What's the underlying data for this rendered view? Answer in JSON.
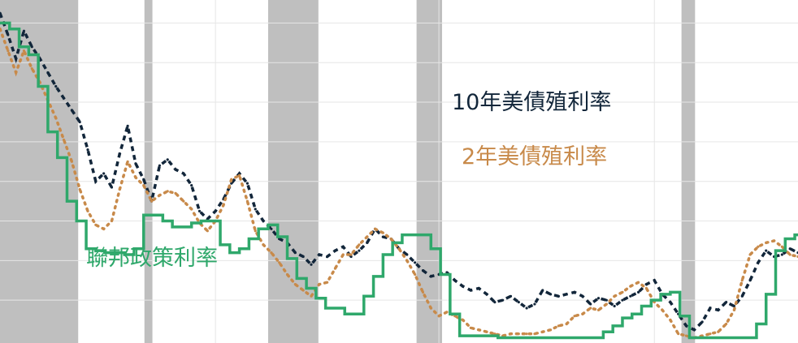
{
  "chart_data": {
    "type": "line",
    "title": "",
    "xlabel": "",
    "ylabel": "",
    "grid": true,
    "recession_shading": true,
    "recessions": [
      [
        0.0,
        0.098
      ],
      [
        0.181,
        0.191
      ],
      [
        0.336,
        0.399
      ],
      [
        0.522,
        0.554
      ],
      [
        0.854,
        0.871
      ]
    ],
    "series": [
      {
        "name": "10年美債殖利率",
        "color": "#12263a",
        "style": "dashed",
        "x": [
          0.0,
          0.01,
          0.02,
          0.03,
          0.04,
          0.05,
          0.06,
          0.07,
          0.08,
          0.09,
          0.1,
          0.11,
          0.12,
          0.13,
          0.14,
          0.15,
          0.16,
          0.17,
          0.18,
          0.19,
          0.2,
          0.21,
          0.22,
          0.23,
          0.24,
          0.25,
          0.26,
          0.27,
          0.28,
          0.29,
          0.3,
          0.31,
          0.32,
          0.33,
          0.34,
          0.35,
          0.36,
          0.37,
          0.38,
          0.39,
          0.4,
          0.41,
          0.42,
          0.43,
          0.44,
          0.45,
          0.46,
          0.47,
          0.48,
          0.49,
          0.5,
          0.51,
          0.52,
          0.53,
          0.54,
          0.55,
          0.56,
          0.57,
          0.58,
          0.59,
          0.6,
          0.61,
          0.62,
          0.63,
          0.64,
          0.65,
          0.66,
          0.67,
          0.68,
          0.69,
          0.7,
          0.71,
          0.72,
          0.73,
          0.74,
          0.75,
          0.76,
          0.77,
          0.78,
          0.79,
          0.8,
          0.81,
          0.82,
          0.83,
          0.84,
          0.85,
          0.86,
          0.87,
          0.88,
          0.89,
          0.9,
          0.91,
          0.92,
          0.93,
          0.94,
          0.95,
          0.96,
          0.97,
          0.98,
          0.99,
          1.0
        ],
        "y": [
          16.5,
          15.4,
          14.2,
          15.6,
          14.8,
          14.2,
          13.5,
          12.8,
          12.2,
          11.6,
          11.0,
          9.6,
          8.0,
          8.4,
          7.7,
          9.4,
          10.8,
          8.9,
          8.1,
          7.0,
          8.8,
          9.1,
          8.6,
          8.4,
          7.8,
          6.5,
          6.1,
          6.5,
          7.1,
          7.9,
          8.4,
          7.9,
          6.6,
          6.0,
          5.6,
          5.1,
          4.9,
          4.4,
          4.2,
          3.8,
          4.3,
          4.2,
          4.5,
          4.7,
          4.2,
          4.5,
          4.9,
          5.6,
          5.2,
          5.1,
          4.6,
          4.3,
          3.9,
          3.5,
          3.2,
          3.3,
          3.4,
          3.0,
          2.7,
          2.5,
          2.6,
          2.3,
          1.9,
          2.0,
          2.2,
          1.9,
          1.6,
          1.8,
          2.5,
          2.3,
          2.2,
          2.3,
          2.4,
          2.2,
          1.8,
          2.1,
          2.0,
          1.7,
          2.0,
          2.2,
          2.4,
          2.8,
          3.0,
          2.3,
          1.9,
          1.3,
          0.7,
          0.5,
          0.9,
          1.6,
          1.5,
          1.9,
          1.7,
          2.2,
          3.0,
          3.9,
          4.5,
          4.2,
          4.3,
          4.6,
          4.4
        ]
      },
      {
        "name": "2年美債殖利率",
        "color": "#c88a4a",
        "style": "dotted",
        "x": [
          0.0,
          0.01,
          0.02,
          0.03,
          0.04,
          0.05,
          0.06,
          0.07,
          0.08,
          0.09,
          0.1,
          0.11,
          0.12,
          0.13,
          0.14,
          0.15,
          0.16,
          0.17,
          0.18,
          0.19,
          0.2,
          0.21,
          0.22,
          0.23,
          0.24,
          0.25,
          0.26,
          0.27,
          0.28,
          0.29,
          0.3,
          0.31,
          0.32,
          0.33,
          0.34,
          0.35,
          0.36,
          0.37,
          0.38,
          0.39,
          0.4,
          0.41,
          0.42,
          0.43,
          0.44,
          0.45,
          0.46,
          0.47,
          0.48,
          0.49,
          0.5,
          0.51,
          0.52,
          0.53,
          0.54,
          0.55,
          0.56,
          0.57,
          0.58,
          0.59,
          0.6,
          0.61,
          0.62,
          0.63,
          0.64,
          0.65,
          0.66,
          0.67,
          0.68,
          0.69,
          0.7,
          0.71,
          0.72,
          0.73,
          0.74,
          0.75,
          0.76,
          0.77,
          0.78,
          0.79,
          0.8,
          0.81,
          0.82,
          0.83,
          0.84,
          0.85,
          0.86,
          0.87,
          0.88,
          0.89,
          0.9,
          0.91,
          0.92,
          0.93,
          0.94,
          0.95,
          0.96,
          0.97,
          0.98,
          0.99,
          1.0
        ],
        "y": [
          15.7,
          14.6,
          13.5,
          14.6,
          13.7,
          13.0,
          12.1,
          11.2,
          10.1,
          9.0,
          7.6,
          6.5,
          5.8,
          5.6,
          6.0,
          7.6,
          9.0,
          8.2,
          7.8,
          7.0,
          7.3,
          7.5,
          7.4,
          7.0,
          6.6,
          5.9,
          5.5,
          6.0,
          6.8,
          8.1,
          8.3,
          7.0,
          5.5,
          4.8,
          4.4,
          3.9,
          3.3,
          2.8,
          2.5,
          2.2,
          2.8,
          2.9,
          3.6,
          4.3,
          4.3,
          4.8,
          5.2,
          5.6,
          5.4,
          5.1,
          4.6,
          4.0,
          3.3,
          2.4,
          1.6,
          1.2,
          1.4,
          1.2,
          1.0,
          0.6,
          0.5,
          0.4,
          0.3,
          0.2,
          0.3,
          0.3,
          0.3,
          0.3,
          0.4,
          0.5,
          0.7,
          0.8,
          1.2,
          1.3,
          1.6,
          1.5,
          1.8,
          2.2,
          2.4,
          2.7,
          2.9,
          2.6,
          1.9,
          1.5,
          1.0,
          0.3,
          0.2,
          0.1,
          0.2,
          0.3,
          0.4,
          0.8,
          1.5,
          3.0,
          4.3,
          4.7,
          4.9,
          5.0,
          4.7,
          4.3,
          4.2
        ]
      },
      {
        "name": "聯邦政策利率",
        "color": "#2fa86b",
        "style": "solid",
        "x": [
          0.0,
          0.012,
          0.024,
          0.036,
          0.048,
          0.06,
          0.072,
          0.084,
          0.096,
          0.108,
          0.12,
          0.132,
          0.144,
          0.156,
          0.168,
          0.18,
          0.192,
          0.204,
          0.216,
          0.228,
          0.24,
          0.252,
          0.264,
          0.276,
          0.288,
          0.3,
          0.312,
          0.324,
          0.336,
          0.348,
          0.36,
          0.372,
          0.384,
          0.396,
          0.408,
          0.42,
          0.432,
          0.444,
          0.456,
          0.468,
          0.48,
          0.492,
          0.504,
          0.516,
          0.528,
          0.54,
          0.552,
          0.564,
          0.576,
          0.588,
          0.6,
          0.612,
          0.624,
          0.636,
          0.648,
          0.66,
          0.672,
          0.684,
          0.696,
          0.708,
          0.72,
          0.732,
          0.744,
          0.756,
          0.768,
          0.78,
          0.792,
          0.804,
          0.816,
          0.828,
          0.84,
          0.852,
          0.864,
          0.876,
          0.888,
          0.9,
          0.912,
          0.924,
          0.936,
          0.948,
          0.96,
          0.972,
          0.984,
          0.996
        ],
        "y": [
          16.0,
          15.7,
          14.8,
          14.4,
          12.8,
          10.5,
          9.2,
          7.0,
          6.0,
          4.6,
          4.5,
          4.4,
          4.4,
          4.3,
          4.6,
          6.3,
          6.3,
          6.0,
          5.7,
          5.7,
          5.9,
          6.0,
          6.0,
          4.8,
          4.4,
          4.6,
          5.1,
          5.6,
          5.8,
          5.2,
          4.1,
          3.1,
          2.6,
          2.1,
          1.6,
          1.6,
          1.3,
          1.3,
          2.2,
          3.2,
          4.3,
          4.9,
          5.3,
          5.3,
          5.3,
          4.6,
          3.3,
          1.3,
          0.2,
          0.2,
          0.2,
          0.2,
          0.1,
          0.1,
          0.1,
          0.1,
          0.1,
          0.1,
          0.1,
          0.1,
          0.1,
          0.1,
          0.1,
          0.4,
          0.7,
          1.1,
          1.3,
          1.7,
          2.0,
          2.3,
          2.4,
          1.2,
          0.1,
          0.1,
          0.1,
          0.1,
          0.1,
          0.1,
          0.1,
          0.8,
          2.3,
          4.5,
          5.1,
          5.3
        ]
      }
    ],
    "ylim": [
      0,
      17
    ],
    "annotations": [
      {
        "text": "10年美債殖利率",
        "color": "#12263a"
      },
      {
        "text": "2年美債殖利率",
        "color": "#c88a4a"
      },
      {
        "text": "聯邦政策利率",
        "color": "#2fa86b"
      }
    ]
  }
}
